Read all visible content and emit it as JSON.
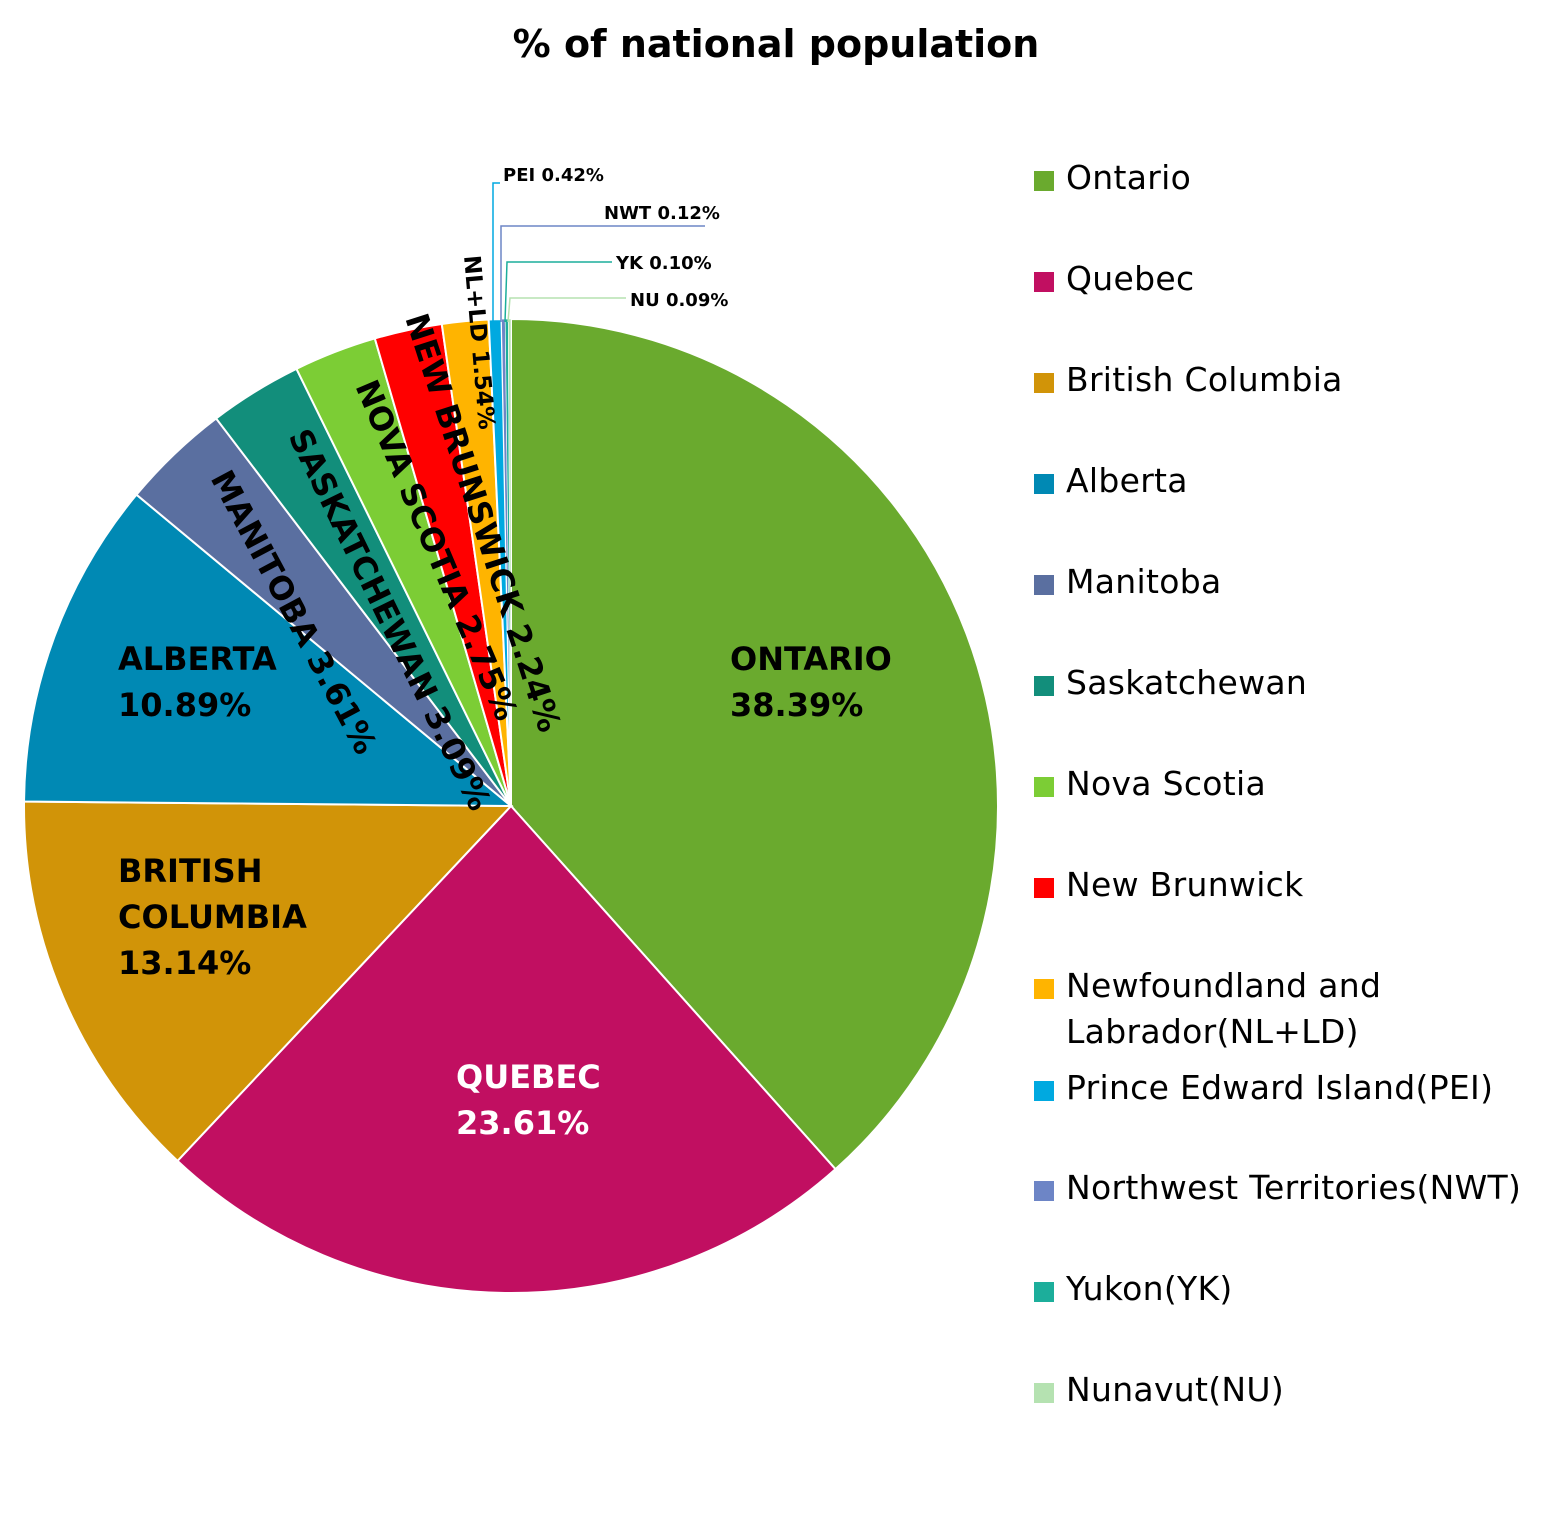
{
  "chart_data": {
    "type": "pie",
    "title": "% of national population",
    "legend_position": "right",
    "slices": [
      {
        "key": "ontario",
        "legend": "Ontario",
        "label_lines": [
          "ONTARIO",
          "38.39%"
        ],
        "value": 38.39,
        "color": "#6aaa2e"
      },
      {
        "key": "quebec",
        "legend": "Quebec",
        "label_lines": [
          "QUEBEC",
          "23.61%"
        ],
        "value": 23.61,
        "color": "#c10f61"
      },
      {
        "key": "british-columbia",
        "legend": "British Columbia",
        "label_lines": [
          "BRITISH",
          "COLUMBIA",
          "13.14%"
        ],
        "value": 13.14,
        "color": "#d19408"
      },
      {
        "key": "alberta",
        "legend": "Alberta",
        "label_lines": [
          "ALBERTA",
          "10.89%"
        ],
        "value": 10.89,
        "color": "#0089b4"
      },
      {
        "key": "manitoba",
        "legend": "Manitoba",
        "label_lines": [
          "MANITOBA 3.61%"
        ],
        "value": 3.61,
        "color": "#5a6fa0"
      },
      {
        "key": "saskatchewan",
        "legend": "Saskatchewan",
        "label_lines": [
          "SASKATCHEWAN 3.09%"
        ],
        "value": 3.09,
        "color": "#128e7b"
      },
      {
        "key": "nova-scotia",
        "legend": "Nova Scotia",
        "label_lines": [
          "NOVA SCOTIA 2.75%"
        ],
        "value": 2.75,
        "color": "#7ccd35"
      },
      {
        "key": "new-brunswick",
        "legend": "New Brunwick",
        "label_lines": [
          "NEW BRUNSWICK 2.24%"
        ],
        "value": 2.24,
        "color": "#ff0000"
      },
      {
        "key": "nl-ld",
        "legend": "Newfoundland and Labrador(NL+LD)",
        "label_lines": [
          "NL+LD 1.54%"
        ],
        "value": 1.54,
        "color": "#ffb400"
      },
      {
        "key": "pei",
        "legend": "Prince Edward Island(PEI)",
        "label_lines": [
          "PEI 0.42%"
        ],
        "value": 0.42,
        "color": "#00a9e0"
      },
      {
        "key": "nwt",
        "legend": "Northwest Territories(NWT)",
        "label_lines": [
          "NWT 0.12%"
        ],
        "value": 0.12,
        "color": "#6d85c6"
      },
      {
        "key": "yk",
        "legend": "Yukon(YK)",
        "label_lines": [
          "YK 0.10%"
        ],
        "value": 0.1,
        "color": "#1cae9b"
      },
      {
        "key": "nu",
        "legend": "Nunavut(NU)",
        "label_lines": [
          "NU 0.09%"
        ],
        "value": 0.09,
        "color": "#b5e2b1"
      }
    ]
  }
}
